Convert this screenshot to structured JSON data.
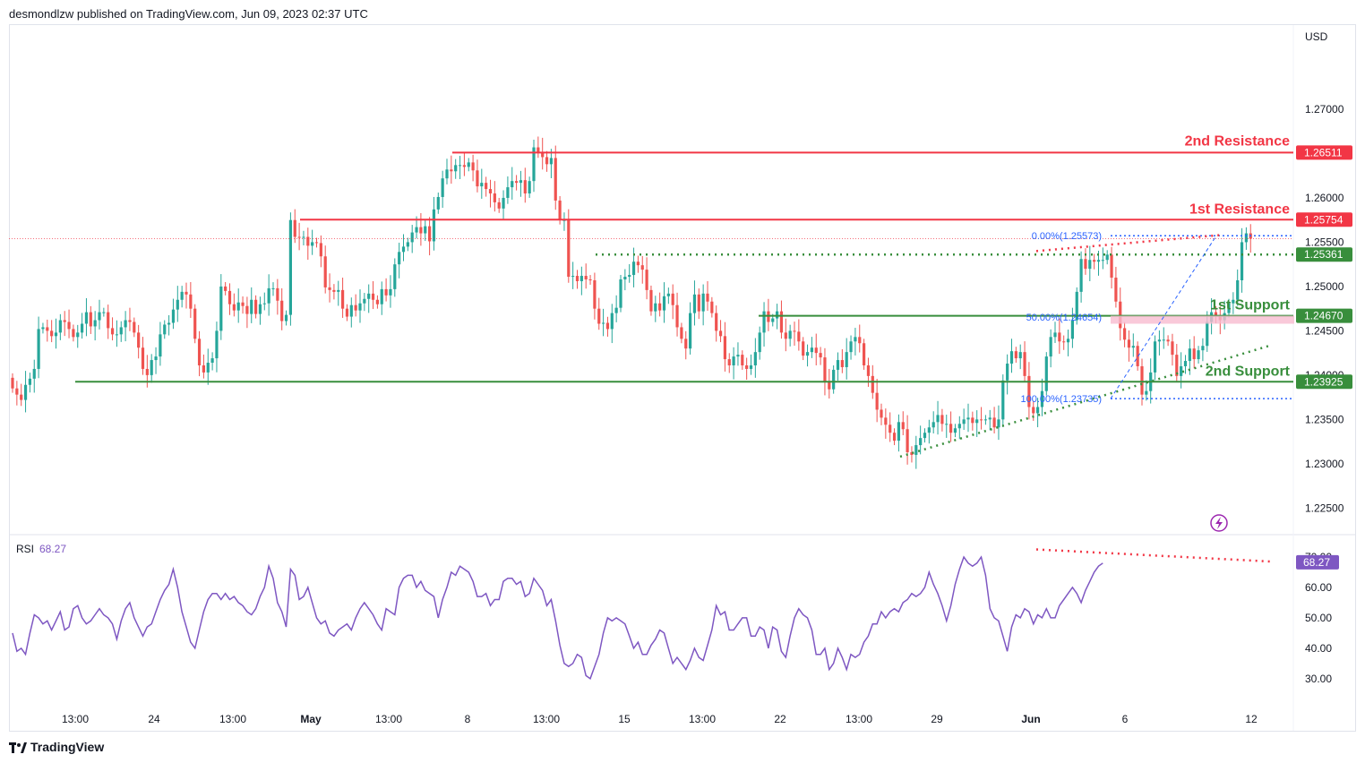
{
  "header": {
    "published_text": "desmondlzw published on TradingView.com, Jun 09, 2023 02:37 UTC"
  },
  "footer": {
    "brand": "TradingView"
  },
  "colors": {
    "up": "#26a69a",
    "down": "#ef5350",
    "resistance": "#f23645",
    "support": "#388e3c",
    "fib": "#2962ff",
    "rsi": "#7e57c2",
    "axis_text": "#131722",
    "current_price": "#f23645"
  },
  "chart_data": {
    "type": "candlestick",
    "title": "",
    "currency_label": "USD",
    "ylim": [
      1.222,
      1.2795
    ],
    "y_ticks": [
      "1.27000",
      "1.26000",
      "1.25500",
      "1.25000",
      "1.24500",
      "1.24000",
      "1.23500",
      "1.23000",
      "1.22500"
    ],
    "x_ticks": [
      "13:00",
      "24",
      "13:00",
      "May",
      "13:00",
      "8",
      "13:00",
      "15",
      "13:00",
      "22",
      "13:00",
      "29",
      "Jun",
      "6",
      "12"
    ],
    "levels": [
      {
        "label": "2nd Resistance",
        "value": "1.26511",
        "kind": "resistance"
      },
      {
        "label": "1st Resistance",
        "value": "1.25754",
        "kind": "resistance"
      },
      {
        "label": "",
        "value": "1.25361",
        "kind": "support-dotted"
      },
      {
        "label": "1st Support",
        "value": "1.24670",
        "kind": "support"
      },
      {
        "label": "2nd Support",
        "value": "1.23925",
        "kind": "support"
      }
    ],
    "fib_labels": [
      "0.00%(1.25573)",
      "50.00%(1.24654)",
      "100.00%(1.23735)"
    ],
    "close": [
      1.2385,
      1.2378,
      1.2372,
      1.2389,
      1.2396,
      1.2407,
      1.2452,
      1.2454,
      1.245,
      1.2444,
      1.2448,
      1.2462,
      1.246,
      1.2452,
      1.2443,
      1.2448,
      1.2458,
      1.2471,
      1.2455,
      1.2462,
      1.2471,
      1.2471,
      1.2453,
      1.2446,
      1.2446,
      1.2454,
      1.2462,
      1.246,
      1.2448,
      1.2431,
      1.2407,
      1.24,
      1.2417,
      1.2421,
      1.2446,
      1.2457,
      1.2459,
      1.2474,
      1.2485,
      1.2494,
      1.2491,
      1.2475,
      1.2441,
      1.2411,
      1.2403,
      1.2414,
      1.2419,
      1.245,
      1.25,
      1.2495,
      1.248,
      1.2473,
      1.2482,
      1.2478,
      1.2469,
      1.2485,
      1.2469,
      1.248,
      1.2481,
      1.2498,
      1.2498,
      1.2484,
      1.2461,
      1.2468,
      1.2575,
      1.2556,
      1.2555,
      1.2556,
      1.2546,
      1.255,
      1.2549,
      1.2534,
      1.2499,
      1.2496,
      1.2494,
      1.2496,
      1.2475,
      1.2466,
      1.2479,
      1.2473,
      1.2481,
      1.2486,
      1.2492,
      1.2485,
      1.248,
      1.2497,
      1.249,
      1.2497,
      1.2525,
      1.2539,
      1.2545,
      1.255,
      1.2561,
      1.2567,
      1.256,
      1.2568,
      1.2551,
      1.2587,
      1.2601,
      1.2622,
      1.2632,
      1.263,
      1.2637,
      1.2637,
      1.2635,
      1.264,
      1.2631,
      1.2613,
      1.2617,
      1.261,
      1.2605,
      1.2595,
      1.2588,
      1.26,
      1.2612,
      1.2619,
      1.2617,
      1.262,
      1.2605,
      1.2619,
      1.2657,
      1.2652,
      1.2646,
      1.2638,
      1.2645,
      1.2597,
      1.2575,
      1.2575,
      1.2511,
      1.2512,
      1.2506,
      1.2512,
      1.2508,
      1.2507,
      1.2475,
      1.2458,
      1.2459,
      1.2452,
      1.247,
      1.2476,
      1.2508,
      1.2511,
      1.2513,
      1.2528,
      1.2524,
      1.2519,
      1.2496,
      1.2472,
      1.2481,
      1.2473,
      1.2489,
      1.2492,
      1.2479,
      1.2454,
      1.2441,
      1.243,
      1.247,
      1.2491,
      1.2472,
      1.2492,
      1.2483,
      1.247,
      1.245,
      1.2444,
      1.2418,
      1.2411,
      1.2421,
      1.2423,
      1.2411,
      1.2407,
      1.2411,
      1.2426,
      1.2448,
      1.2472,
      1.246,
      1.2464,
      1.2472,
      1.2448,
      1.2441,
      1.245,
      1.2449,
      1.2438,
      1.2422,
      1.2426,
      1.2431,
      1.2425,
      1.242,
      1.2393,
      1.2384,
      1.2406,
      1.2417,
      1.2409,
      1.2426,
      1.2438,
      1.2443,
      1.2436,
      1.2411,
      1.2399,
      1.238,
      1.2361,
      1.2352,
      1.2344,
      1.2335,
      1.2326,
      1.2347,
      1.2339,
      1.2313,
      1.231,
      1.2321,
      1.2329,
      1.2335,
      1.2341,
      1.2347,
      1.2355,
      1.2345,
      1.2345,
      1.2335,
      1.234,
      1.2345,
      1.235,
      1.2352,
      1.2346,
      1.235,
      1.2349,
      1.235,
      1.2352,
      1.2341,
      1.235,
      1.2394,
      1.2413,
      1.2427,
      1.2419,
      1.2426,
      1.2399,
      1.2364,
      1.2357,
      1.2364,
      1.2382,
      1.2421,
      1.2443,
      1.2448,
      1.2438,
      1.2437,
      1.2441,
      1.2462,
      1.2494,
      1.2531,
      1.252,
      1.253,
      1.2528,
      1.253,
      1.253,
      1.2536,
      1.251,
      1.2483,
      1.2453,
      1.244,
      1.2431,
      1.2433,
      1.241,
      1.2378,
      1.2382,
      1.2403,
      1.2438,
      1.244,
      1.244,
      1.2438,
      1.2423,
      1.2399,
      1.241,
      1.2416,
      1.243,
      1.2418,
      1.2428,
      1.2433,
      1.246,
      1.2471,
      1.2467,
      1.2462,
      1.247,
      1.2481,
      1.2485,
      1.2507,
      1.255,
      1.256,
      1.2554
    ],
    "rsi": {
      "label": "RSI",
      "value": "68.27",
      "ylim": [
        22,
        75
      ],
      "ticks": [
        "70.00",
        "60.00",
        "50.00",
        "40.00",
        "30.00"
      ],
      "values": [
        45,
        39,
        40,
        38,
        45,
        51,
        50,
        48,
        49,
        46,
        49,
        52,
        46,
        47,
        53,
        54,
        50,
        48,
        49,
        51,
        53,
        51,
        50,
        48,
        43,
        49,
        53,
        55,
        50,
        47,
        44,
        47,
        48,
        52,
        56,
        59,
        61,
        66,
        60,
        52,
        47,
        42,
        40,
        46,
        52,
        56,
        58,
        58,
        56,
        58,
        56,
        57,
        55,
        54,
        52,
        51,
        53,
        57,
        60,
        67,
        63,
        55,
        52,
        47,
        66,
        64,
        56,
        57,
        60,
        55,
        50,
        48,
        49,
        45,
        44,
        46,
        47,
        48,
        46,
        50,
        53,
        55,
        53,
        51,
        48,
        46,
        53,
        52,
        51,
        60,
        63,
        64,
        64,
        60,
        62,
        59,
        58,
        57,
        50,
        56,
        60,
        65,
        64,
        67,
        66,
        65,
        62,
        57,
        57,
        58,
        54,
        56,
        56,
        62,
        63,
        63,
        61,
        62,
        57,
        58,
        63,
        61,
        59,
        54,
        56,
        49,
        41,
        35,
        34,
        35,
        38,
        37,
        31,
        30,
        34,
        38,
        45,
        50,
        49,
        50,
        49,
        48,
        44,
        40,
        42,
        38,
        38,
        41,
        43,
        46,
        45,
        40,
        35,
        37,
        35,
        33,
        36,
        40,
        37,
        36,
        41,
        46,
        54,
        51,
        52,
        46,
        46,
        48,
        50,
        50,
        44,
        44,
        47,
        46,
        40,
        47,
        46,
        39,
        37,
        44,
        50,
        53,
        51,
        50,
        46,
        38,
        38,
        40,
        33,
        35,
        40,
        37,
        33,
        38,
        37,
        38,
        42,
        44,
        48,
        48,
        52,
        50,
        52,
        53,
        52,
        55,
        56,
        58,
        57,
        58,
        60,
        65,
        61,
        58,
        54,
        49,
        54,
        61,
        66,
        70,
        68,
        67,
        68,
        70,
        64,
        53,
        50,
        49,
        44,
        39,
        47,
        51,
        50,
        53,
        52,
        48,
        51,
        50,
        53,
        50,
        50,
        54,
        56,
        58,
        60,
        58,
        55,
        59,
        62,
        65,
        67,
        68
      ]
    }
  }
}
